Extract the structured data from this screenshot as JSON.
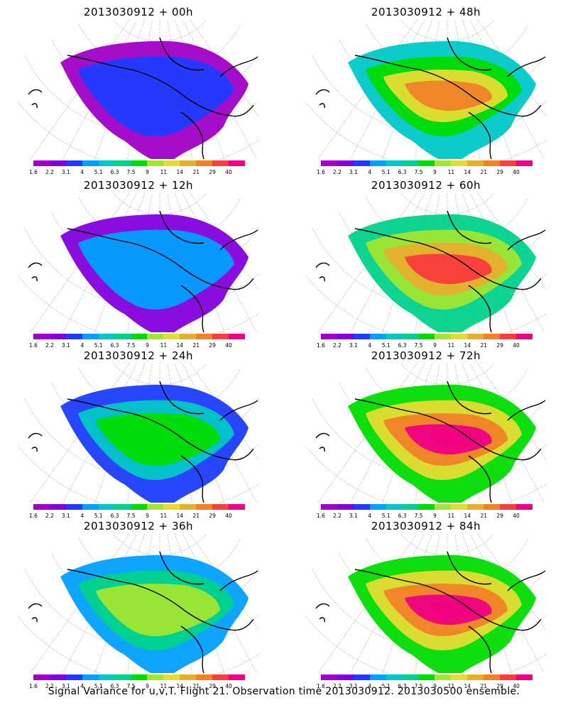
{
  "panels": [
    {
      "title": "2013030912 + 00h",
      "level": 0
    },
    {
      "title": "2013030912 + 48h",
      "level": 4
    },
    {
      "title": "2013030912 + 12h",
      "level": 1
    },
    {
      "title": "2013030912 + 60h",
      "level": 5
    },
    {
      "title": "2013030912 + 24h",
      "level": 2
    },
    {
      "title": "2013030912 + 72h",
      "level": 6
    },
    {
      "title": "2013030912 + 36h",
      "level": 3
    },
    {
      "title": "2013030912 + 84h",
      "level": 7
    }
  ],
  "colorbar": {
    "labels": [
      "1.6",
      "2.2",
      "3.1",
      "4",
      "5.1",
      "6.3",
      "7.5",
      "9",
      "11",
      "14",
      "21",
      "29",
      "40"
    ],
    "colors": [
      "#a000c8",
      "#8200dc",
      "#1e3cff",
      "#00a0ff",
      "#00c8c8",
      "#00d28c",
      "#00dc00",
      "#a0e632",
      "#e6dc32",
      "#e6af2d",
      "#f08228",
      "#fa3c3c",
      "#f00082"
    ]
  },
  "caption": "Signal Variance for u,v,T. Flight 21. Observation time 2013030912. 2013030500 ensemble."
}
